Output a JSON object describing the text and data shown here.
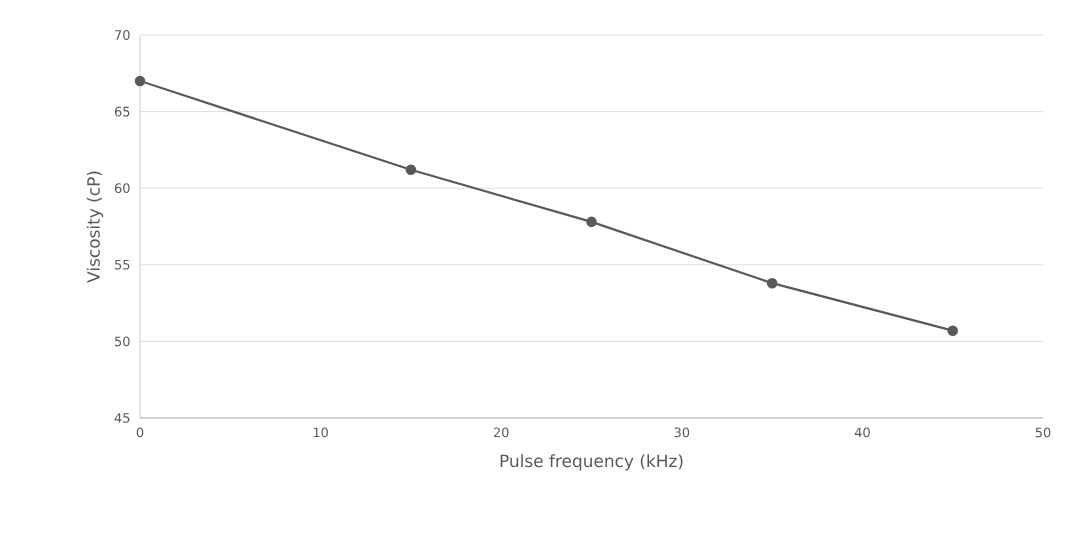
{
  "chart_data": {
    "type": "line",
    "xlabel": "Pulse frequency (kHz)",
    "ylabel": "Viscosity (cP)",
    "x": [
      0,
      15,
      25,
      35,
      45
    ],
    "series": [
      {
        "color": "#595959",
        "values": [
          67.0,
          61.2,
          57.8,
          53.8,
          50.7
        ]
      }
    ],
    "xlim": [
      0,
      50
    ],
    "xticks": [
      0,
      10,
      20,
      30,
      40,
      50
    ],
    "ylim": [
      45,
      70
    ],
    "yticks": [
      45,
      50,
      55,
      60,
      65,
      70
    ],
    "grid": "y",
    "marker": "circle",
    "line_style": "solid"
  }
}
